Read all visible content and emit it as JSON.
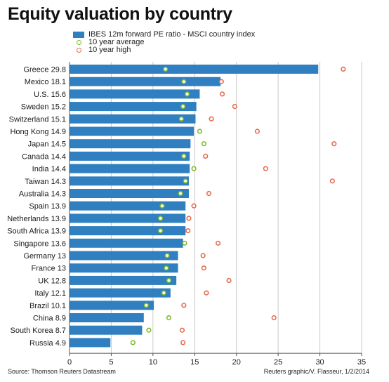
{
  "title": "Equity valuation by country",
  "legend": {
    "bar_label": "IBES 12m forward PE ratio - MSCI country index",
    "avg_label": "10 year average",
    "high_label": "10 year high"
  },
  "footer": {
    "source": "Source: Thomson Reuters Datastream",
    "credit": "Reuters graphic/V. Flasseur, 1/2/2014"
  },
  "colors": {
    "bar": "#2f7fc1",
    "avg": "#7dbb2b",
    "high": "#e56b4f",
    "grid": "#c8c8c8"
  },
  "chart_data": {
    "type": "bar",
    "orientation": "horizontal",
    "categories": [
      "Greece 29.8",
      "Mexico 18.1",
      "U.S. 15.6",
      "Sweden 15.2",
      "Switzerland 15.1",
      "Hong Kong 14.9",
      "Japan 14.5",
      "Canada 14.4",
      "India 14.4",
      "Taiwan 14.3",
      "Australia 14.3",
      "Spain 13.9",
      "Netherlands 13.9",
      "South Africa 13.9",
      "Singapore 13.6",
      "Germany 13",
      "France 13",
      "UK 12.8",
      "Italy 12.1",
      "Brazil 10.1",
      "China 8.9",
      "South Korea 8.7",
      "Russia 4.9"
    ],
    "series": [
      {
        "name": "IBES 12m forward PE ratio - MSCI country index",
        "values": [
          29.8,
          18.1,
          15.6,
          15.2,
          15.1,
          14.9,
          14.5,
          14.4,
          14.4,
          14.3,
          14.3,
          13.9,
          13.9,
          13.9,
          13.6,
          13,
          13,
          12.8,
          12.1,
          10.1,
          8.9,
          8.7,
          4.9
        ]
      },
      {
        "name": "10 year average",
        "values": [
          11.5,
          13.7,
          14.1,
          13.6,
          13.4,
          15.6,
          16.1,
          13.7,
          14.9,
          13.9,
          13.3,
          11.1,
          10.9,
          10.9,
          13.8,
          11.7,
          11.6,
          11.9,
          11.3,
          9.2,
          11.9,
          9.5,
          7.6
        ]
      },
      {
        "name": "10 year high",
        "values": [
          32.8,
          18.2,
          18.3,
          19.8,
          17.0,
          22.5,
          31.7,
          16.3,
          23.5,
          31.5,
          16.7,
          14.9,
          14.3,
          14.2,
          17.8,
          16.0,
          16.1,
          19.1,
          16.4,
          13.7,
          24.5,
          13.5,
          13.6
        ]
      }
    ],
    "xlim": [
      0,
      35
    ],
    "xticks": [
      "0",
      "5",
      "10",
      "15",
      "20",
      "25",
      "30",
      "35"
    ],
    "grid": true
  }
}
